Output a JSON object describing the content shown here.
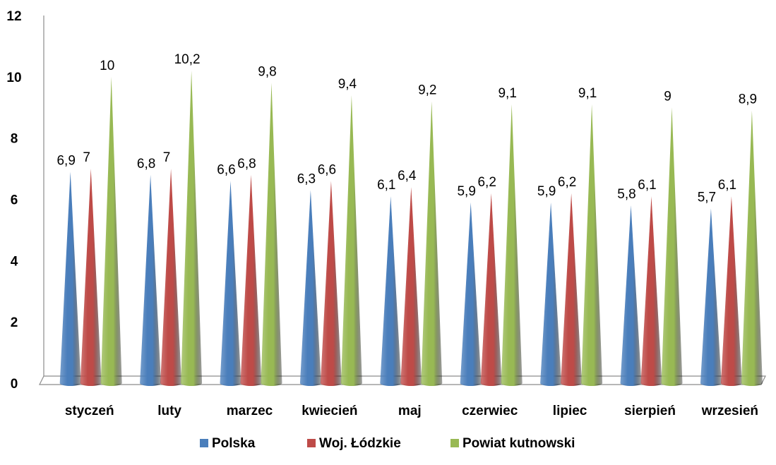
{
  "chart_data": {
    "type": "bar",
    "bar_shape": "cone-3d",
    "categories": [
      "styczeń",
      "luty",
      "marzec",
      "kwiecień",
      "maj",
      "czerwiec",
      "lipiec",
      "sierpień",
      "wrzesień"
    ],
    "series": [
      {
        "name": "Polska",
        "values": [
          6.9,
          6.8,
          6.6,
          6.3,
          6.1,
          5.9,
          5.9,
          5.8,
          5.7
        ],
        "labels": [
          "6,9",
          "6,8",
          "6,6",
          "6,3",
          "6,1",
          "5,9",
          "5,9",
          "5,8",
          "5,7"
        ],
        "color": "#4a7ebb"
      },
      {
        "name": "Woj. Łódzkie",
        "values": [
          7,
          7,
          6.8,
          6.6,
          6.4,
          6.2,
          6.2,
          6.1,
          6.1
        ],
        "labels": [
          "7",
          "7",
          "6,8",
          "6,6",
          "6,4",
          "6,2",
          "6,2",
          "6,1",
          "6,1"
        ],
        "color": "#be4b48"
      },
      {
        "name": "Powiat kutnowski",
        "values": [
          10,
          10.2,
          9.8,
          9.4,
          9.2,
          9.1,
          9.1,
          9,
          8.9
        ],
        "labels": [
          "10",
          "10,2",
          "9,8",
          "9,4",
          "9,2",
          "9,1",
          "9,1",
          "9",
          "8,9"
        ],
        "color": "#98b954"
      }
    ],
    "yticks": [
      "0",
      "2",
      "4",
      "6",
      "8",
      "10",
      "12"
    ],
    "ylim": [
      0,
      12
    ],
    "grid": false,
    "legend_position": "bottom"
  }
}
